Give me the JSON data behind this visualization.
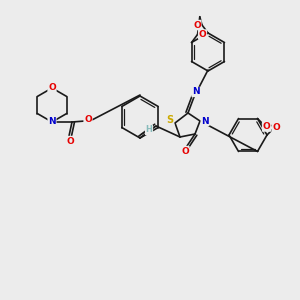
{
  "background_color": "#ececec",
  "bond_color": "#1a1a1a",
  "atom_colors": {
    "O": "#e60000",
    "N": "#0000cc",
    "S": "#ccaa00",
    "H": "#88bbbb",
    "C": "#1a1a1a"
  },
  "figsize": [
    3.0,
    3.0
  ],
  "dpi": 100
}
